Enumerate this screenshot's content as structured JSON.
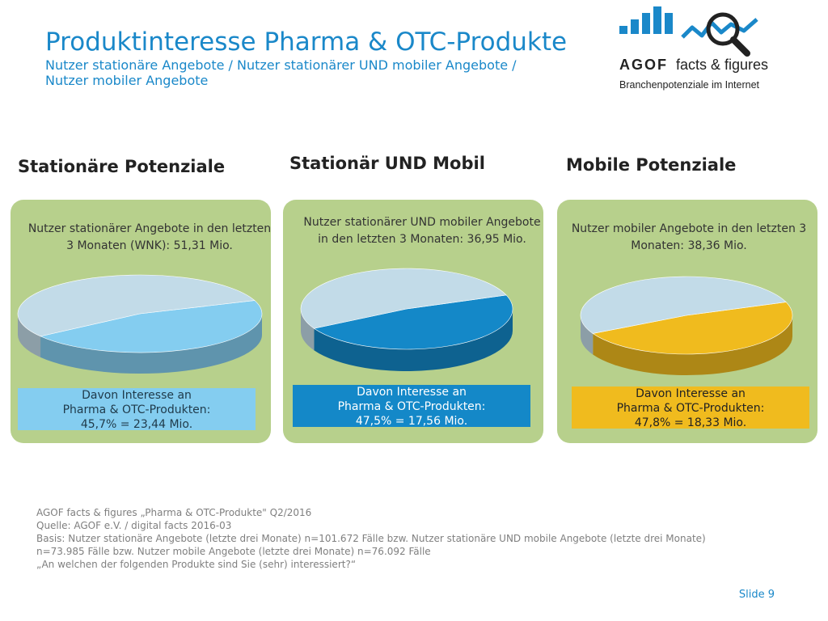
{
  "header": {
    "title": "Produktinteresse Pharma & OTC-Produkte",
    "subtitle_line1": "Nutzer stationäre Angebote / Nutzer stationärer UND mobiler Angebote /",
    "subtitle_line2": "Nutzer mobiler Angebote"
  },
  "logo": {
    "brand": "AGOF",
    "tagline": "facts & figures",
    "sub": "Branchenpotenziale im Internet"
  },
  "sections": [
    {
      "heading": "Stationäre Potenziale",
      "description": "Nutzer stationärer Angebote in den letzten 3 Monaten (WNK): 51,31 Mio.",
      "result_line1": "Davon Interesse an",
      "result_line2": "Pharma & OTC-Produkten:",
      "result_line3": "45,7% = 23,44 Mio.",
      "accent": "#84cdf0"
    },
    {
      "heading": "Stationär UND Mobil",
      "description": "Nutzer stationärer UND mobiler Angebote in den letzten 3 Monaten: 36,95 Mio.",
      "result_line1": "Davon Interesse an",
      "result_line2": "Pharma & OTC-Produkten:",
      "result_line3": "47,5% = 17,56 Mio.",
      "accent": "#1488c8"
    },
    {
      "heading": "Mobile Potenziale",
      "description": "Nutzer mobiler Angebote in den letzten 3 Monaten: 38,36 Mio.",
      "result_line1": "Davon Interesse an",
      "result_line2": "Pharma & OTC-Produkten:",
      "result_line3": "47,8% = 18,33 Mio.",
      "accent": "#f0bb1e"
    }
  ],
  "chart_data": [
    {
      "type": "pie",
      "values": [
        45.7,
        54.3
      ],
      "colors": [
        "#84cdf0",
        "#c2dbe8"
      ]
    },
    {
      "type": "pie",
      "values": [
        47.5,
        52.5
      ],
      "colors": [
        "#1488c8",
        "#c2dbe8"
      ]
    },
    {
      "type": "pie",
      "values": [
        47.8,
        52.2
      ],
      "colors": [
        "#f0bb1e",
        "#c2dbe8"
      ]
    }
  ],
  "footer": {
    "line1": "AGOF facts & figures „Pharma & OTC-Produkte\" Q2/2016",
    "line2": "Quelle: AGOF e.V. / digital facts 2016-03",
    "line3": "Basis: Nutzer stationäre Angebote (letzte drei Monate) n=101.672 Fälle bzw. Nutzer stationäre UND mobile Angebote (letzte drei Monate)",
    "line4": "n=73.985 Fälle bzw. Nutzer mobile Angebote (letzte drei Monate) n=76.092 Fälle",
    "line5": "„An welchen der folgenden Produkte sind Sie (sehr) interessiert?“",
    "slide": "Slide 9"
  }
}
